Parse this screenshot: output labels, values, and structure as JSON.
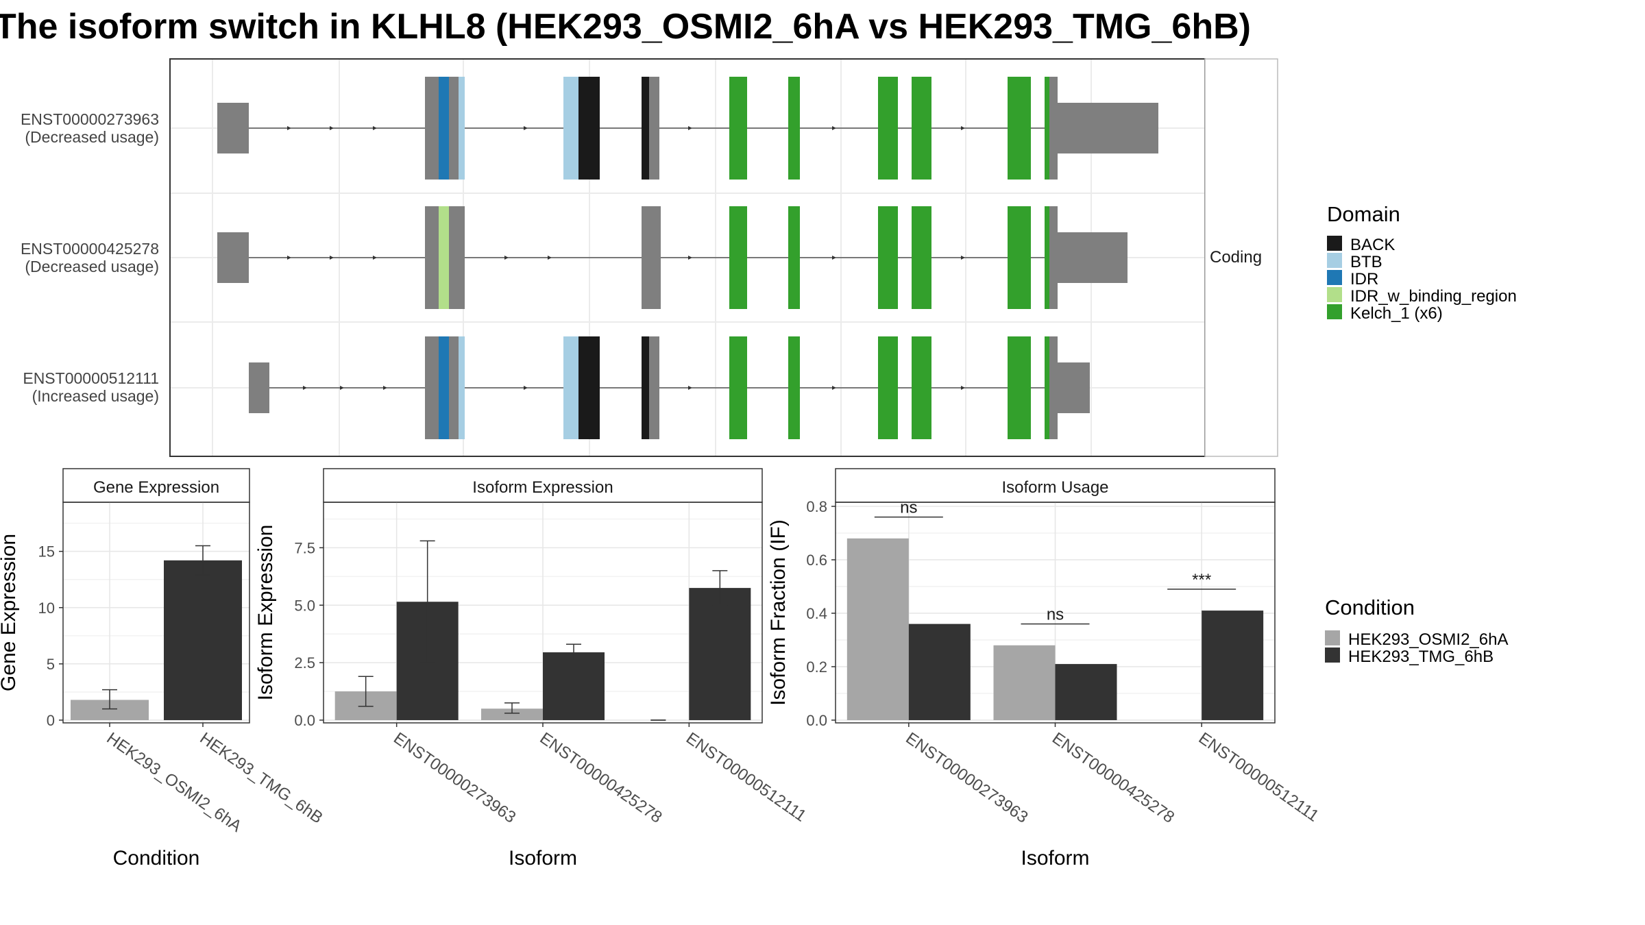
{
  "title": "The isoform switch in KLHL8 (HEK293_OSMI2_6hA vs HEK293_TMG_6hB)",
  "transcripts": {
    "strip_label": "Coding",
    "rows": [
      {
        "id": "ENST00000273963",
        "label": "ENST00000273963",
        "sublabel": "(Decreased usage)"
      },
      {
        "id": "ENST00000425278",
        "label": "ENST00000425278",
        "sublabel": "(Decreased usage)"
      },
      {
        "id": "ENST00000512111",
        "label": "ENST00000512111",
        "sublabel": "(Increased usage)"
      }
    ]
  },
  "domain_legend": {
    "title": "Domain",
    "items": [
      {
        "label": "BACK",
        "color": "#1a1a1a"
      },
      {
        "label": "BTB",
        "color": "#a6cee3"
      },
      {
        "label": "IDR",
        "color": "#1f78b4"
      },
      {
        "label": "IDR_w_binding_region",
        "color": "#b2df8a"
      },
      {
        "label": "Kelch_1 (x6)",
        "color": "#33a02c"
      }
    ]
  },
  "condition_legend": {
    "title": "Condition",
    "items": [
      {
        "label": "HEK293_OSMI2_6hA",
        "color": "#a6a6a6"
      },
      {
        "label": "HEK293_TMG_6hB",
        "color": "#333333"
      }
    ]
  },
  "chart_data": [
    {
      "type": "bar",
      "title": "Gene Expression",
      "xlabel": "Condition",
      "ylabel": "Gene Expression",
      "ylim": [
        0,
        19
      ],
      "yticks": [
        "0",
        "5",
        "10",
        "15"
      ],
      "categories": [
        "HEK293_OSMI2_6hA",
        "HEK293_TMG_6hB"
      ],
      "series": [
        {
          "name": "HEK293_OSMI2_6hA",
          "values": [
            1.8,
            null
          ],
          "err_low": [
            1.0,
            null
          ],
          "err_high": [
            2.7,
            null
          ]
        },
        {
          "name": "HEK293_TMG_6hB",
          "values": [
            null,
            14.2
          ],
          "err_low": [
            null,
            12.9
          ],
          "err_high": [
            null,
            15.5
          ]
        }
      ]
    },
    {
      "type": "bar",
      "title": "Isoform Expression",
      "xlabel": "Isoform",
      "ylabel": "Isoform Expression",
      "ylim": [
        0,
        9.3
      ],
      "yticks": [
        "0.0",
        "2.5",
        "5.0",
        "7.5"
      ],
      "categories": [
        "ENST00000273963",
        "ENST00000425278",
        "ENST00000512111"
      ],
      "series": [
        {
          "name": "HEK293_OSMI2_6hA",
          "values": [
            1.25,
            0.5,
            0.0
          ],
          "err_low": [
            0.6,
            0.3,
            0.0
          ],
          "err_high": [
            1.9,
            0.75,
            0.0
          ]
        },
        {
          "name": "HEK293_TMG_6hB",
          "values": [
            5.15,
            2.95,
            5.75
          ],
          "err_low": [
            2.5,
            2.6,
            5.0
          ],
          "err_high": [
            7.8,
            3.3,
            6.5
          ]
        }
      ]
    },
    {
      "type": "bar",
      "title": "Isoform Usage",
      "xlabel": "Isoform",
      "ylabel": "Isoform Fraction (IF)",
      "ylim": [
        0,
        0.8
      ],
      "yticks": [
        "0.0",
        "0.2",
        "0.4",
        "0.6",
        "0.8"
      ],
      "categories": [
        "ENST00000273963",
        "ENST00000425278",
        "ENST00000512111"
      ],
      "series": [
        {
          "name": "HEK293_OSMI2_6hA",
          "values": [
            0.68,
            0.28,
            0.0
          ]
        },
        {
          "name": "HEK293_TMG_6hB",
          "values": [
            0.36,
            0.21,
            0.41
          ]
        }
      ],
      "significance": [
        "ns",
        "ns",
        "***"
      ]
    }
  ]
}
